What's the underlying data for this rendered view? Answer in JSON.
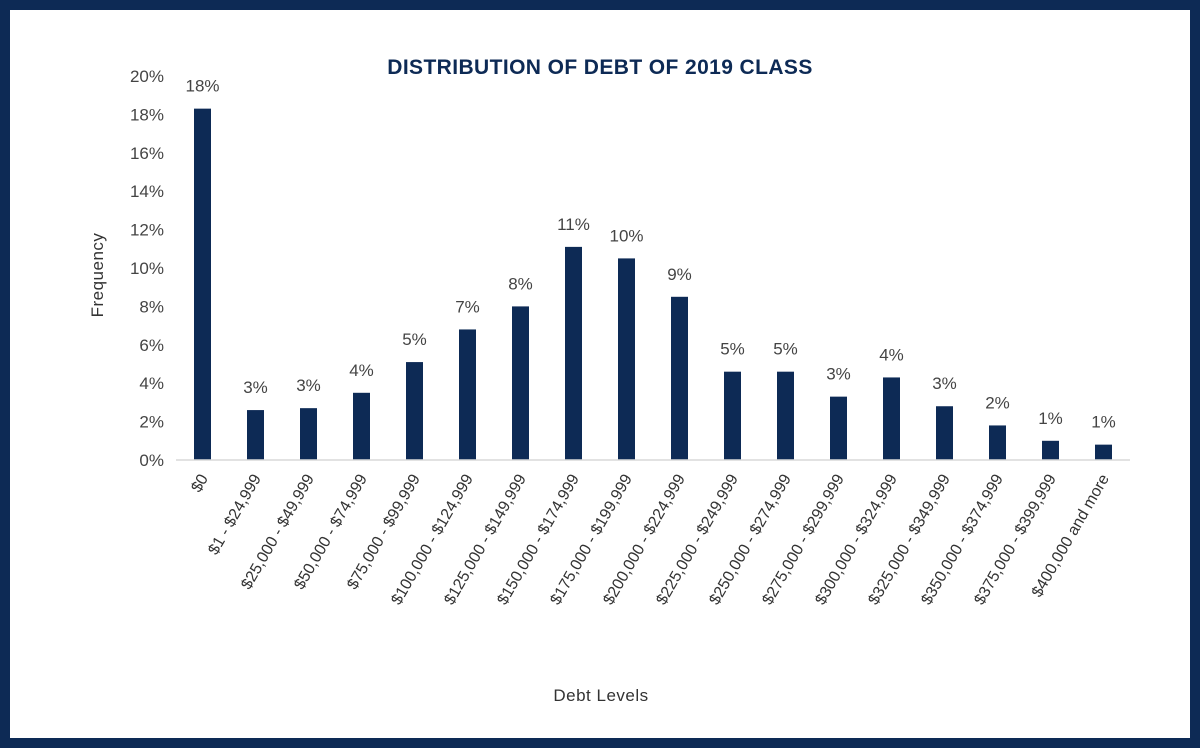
{
  "chart_data": {
    "type": "bar",
    "title": "DISTRIBUTION OF DEBT  OF 2019 CLASS",
    "xlabel": "Debt Levels",
    "ylabel": "Frequency",
    "ylim": [
      0,
      20
    ],
    "yticks": [
      0,
      2,
      4,
      6,
      8,
      10,
      12,
      14,
      16,
      18,
      20
    ],
    "ytick_suffix": "%",
    "grid": false,
    "categories": [
      "$0",
      "$1 - $24,999",
      "$25,000 - $49,999",
      "$50,000 - $74,999",
      "$75,000 - $99,999",
      "$100,000 - $124,999",
      "$125,000 - $149,999",
      "$150,000 - $174,999",
      "$175,000 - $199,999",
      "$200,000 - $224,999",
      "$225,000 - $249,999",
      "$250,000 - $274,999",
      "$275,000 - $299,999",
      "$300,000 - $324,999",
      "$325,000 - $349,999",
      "$350,000 - $374,999",
      "$375,000 - $399,999",
      "$400,000 and more"
    ],
    "values": [
      18.3,
      2.6,
      2.7,
      3.5,
      5.1,
      6.8,
      8.0,
      11.1,
      10.5,
      8.5,
      4.6,
      4.6,
      3.3,
      4.3,
      2.8,
      1.8,
      1.0,
      0.8
    ],
    "data_labels": [
      "18%",
      "3%",
      "3%",
      "4%",
      "5%",
      "7%",
      "8%",
      "11%",
      "10%",
      "9%",
      "5%",
      "5%",
      "3%",
      "4%",
      "3%",
      "2%",
      "1%",
      "1%"
    ],
    "colors": {
      "bar": "#0d2a55",
      "frame": "#0d2a55",
      "axis": "#d9d9d9"
    }
  }
}
